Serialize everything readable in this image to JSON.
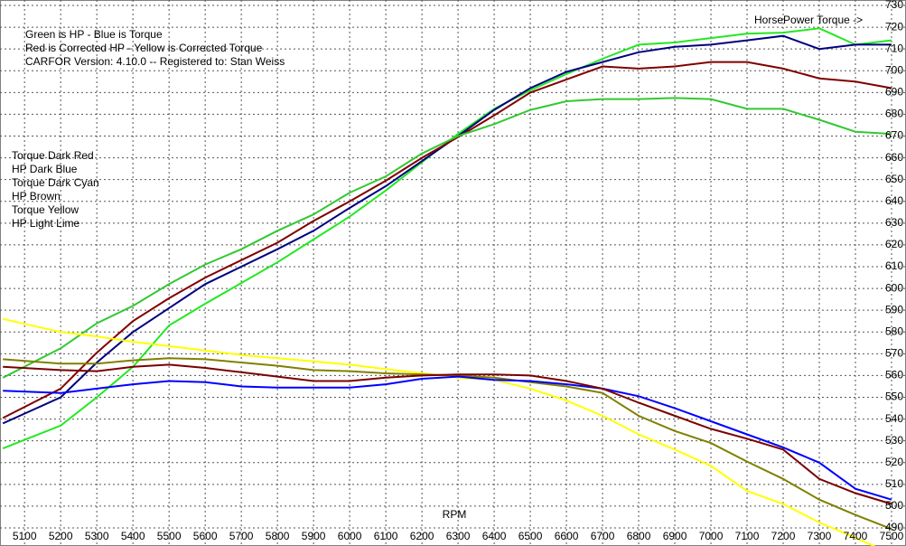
{
  "chart_data": {
    "type": "line",
    "notes": [
      "Green is HP - Blue is Torque",
      "Red is Corrected HP - Yellow is Corrected Torque",
      "CARFOR Version: 4.10.0 -- Registered to:   Stan Weiss"
    ],
    "axis_note": "HorsePower Torque ->",
    "legend_text": [
      "Torque   Dark Red",
      "HP   Dark Blue",
      "Torque   Dark Cyan",
      "HP   Brown",
      "Torque   Yellow",
      "HP   Light Lime"
    ],
    "xlabel": "RPM",
    "x": [
      5040,
      5200,
      5300,
      5400,
      5500,
      5600,
      5700,
      5800,
      5900,
      6000,
      6100,
      6200,
      6300,
      6400,
      6500,
      6600,
      6700,
      6800,
      6900,
      7000,
      7100,
      7200,
      7300,
      7400,
      7500
    ],
    "series": [
      {
        "color": "#22e822",
        "values": [
          526.5,
          537,
          550,
          564,
          583,
          593,
          602.5,
          612,
          622.5,
          633,
          645,
          658,
          671,
          682.5,
          691,
          698.5,
          705.5,
          712,
          713,
          715,
          717,
          717.5,
          719.5,
          712,
          714
        ]
      },
      {
        "color": "#000080",
        "values": [
          538,
          550,
          566,
          580,
          591,
          602,
          610,
          618,
          626.5,
          637,
          647,
          658.5,
          670,
          682,
          692,
          699.5,
          704,
          708.5,
          711,
          712,
          714,
          716,
          710,
          712,
          712
        ]
      },
      {
        "color": "#800000",
        "values": [
          540.5,
          554,
          570.5,
          585,
          595.5,
          605,
          613,
          621,
          631,
          640,
          649.5,
          660,
          669.5,
          679.5,
          690,
          696,
          702,
          701,
          702,
          704,
          704,
          701,
          696.5,
          695,
          692
        ]
      },
      {
        "color": "#33c833",
        "values": [
          559,
          572.5,
          584,
          592,
          602,
          611,
          618,
          626.5,
          634,
          644,
          651.5,
          662,
          670,
          675.5,
          682,
          686,
          687,
          687,
          687.5,
          687,
          682.5,
          682.5,
          677.5,
          672,
          671
        ]
      },
      {
        "color": "#ffff00",
        "values": [
          586,
          580,
          578,
          575.5,
          573.5,
          571.5,
          569.5,
          568,
          566.5,
          565,
          563,
          561,
          559,
          558,
          554,
          548.5,
          541.5,
          533,
          526,
          518.5,
          507,
          501,
          492.5,
          485.5,
          478
        ]
      },
      {
        "color": "#808000",
        "values": [
          567.5,
          565.5,
          565.5,
          567,
          568,
          567.5,
          566,
          564.5,
          562.5,
          562,
          561,
          560.5,
          560,
          559,
          557,
          555,
          552,
          541.5,
          534.5,
          529,
          520.5,
          512.5,
          503,
          496,
          489.5
        ]
      },
      {
        "color": "#0000ff",
        "values": [
          553,
          552,
          554,
          556,
          557.5,
          557,
          555,
          554.5,
          554.5,
          554.5,
          556,
          558.5,
          559.5,
          558,
          557.5,
          556,
          554,
          550.5,
          545,
          539,
          533,
          527,
          520,
          508,
          503
        ]
      },
      {
        "color": "#7a0000",
        "values": [
          564,
          562.5,
          562,
          564,
          565,
          563.5,
          561.5,
          559.5,
          557.5,
          557.5,
          559,
          560,
          560.5,
          560.5,
          560,
          557.5,
          554,
          547.5,
          541.5,
          535.5,
          531,
          526,
          512.5,
          506,
          501
        ]
      }
    ],
    "xlim": [
      5032,
      7540
    ],
    "ylim": [
      481.7,
      732.5
    ],
    "xticks": [
      5100,
      5200,
      5300,
      5400,
      5500,
      5600,
      5700,
      5800,
      5900,
      6000,
      6100,
      6200,
      6300,
      6400,
      6500,
      6600,
      6700,
      6800,
      6900,
      7000,
      7100,
      7200,
      7300,
      7400,
      7500
    ],
    "yticks": [
      490,
      500,
      510,
      520,
      530,
      540,
      550,
      560,
      570,
      580,
      590,
      600,
      610,
      620,
      630,
      640,
      650,
      660,
      670,
      680,
      690,
      700,
      710,
      720,
      730
    ],
    "grid": true
  }
}
